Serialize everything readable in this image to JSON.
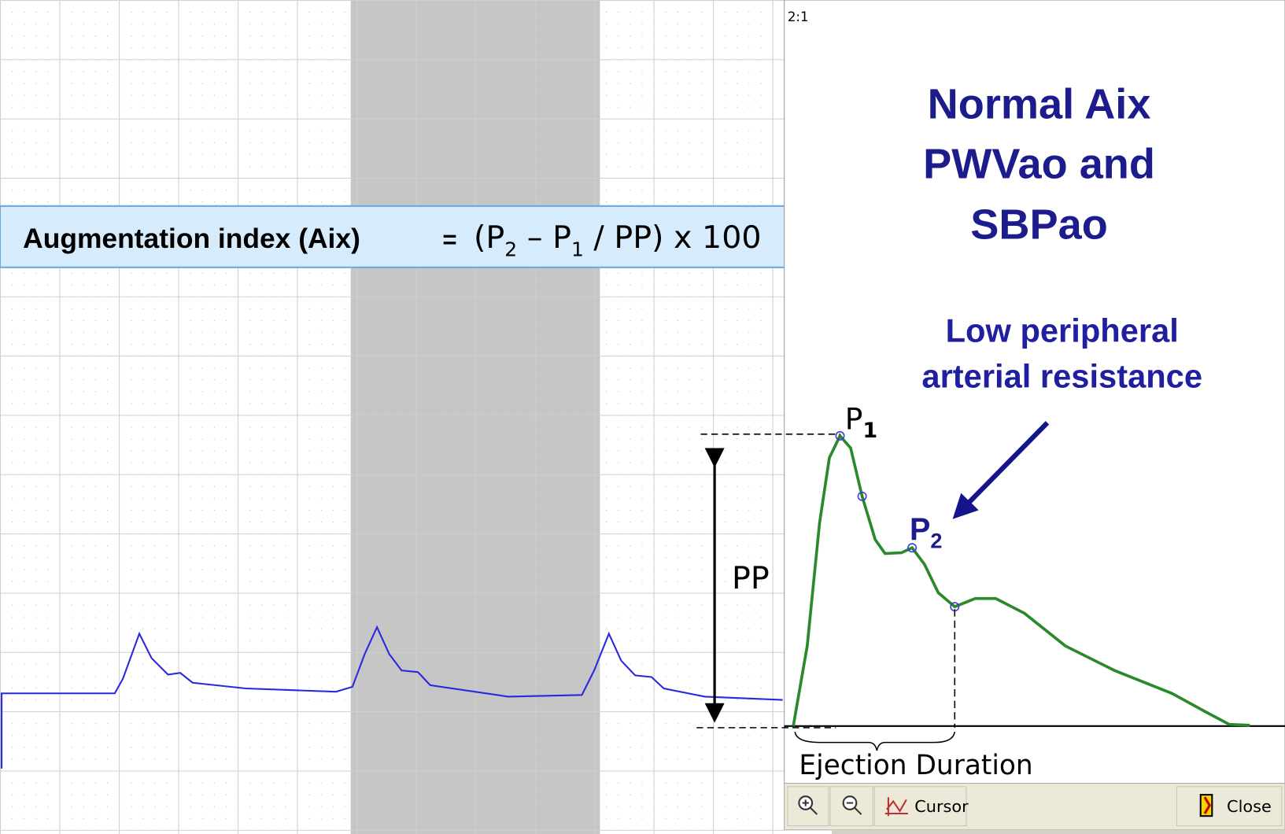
{
  "panel_label": "2:1",
  "formula": {
    "label": "Augmentation index (Aix)",
    "equals": "=",
    "parts": [
      "(P",
      "2",
      " – P",
      "1",
      " / PP) x 100"
    ]
  },
  "title": [
    "Normal Aix",
    "PWVao and",
    "SBPao"
  ],
  "annotation": [
    "Low peripheral",
    "arterial resistance"
  ],
  "markers": {
    "p1": [
      "P",
      "1"
    ],
    "p2": [
      "P",
      "2"
    ],
    "pp": "PP",
    "ejection": "Ejection Duration"
  },
  "toolbar": {
    "cursor": "Cursor",
    "close": "Close"
  }
}
